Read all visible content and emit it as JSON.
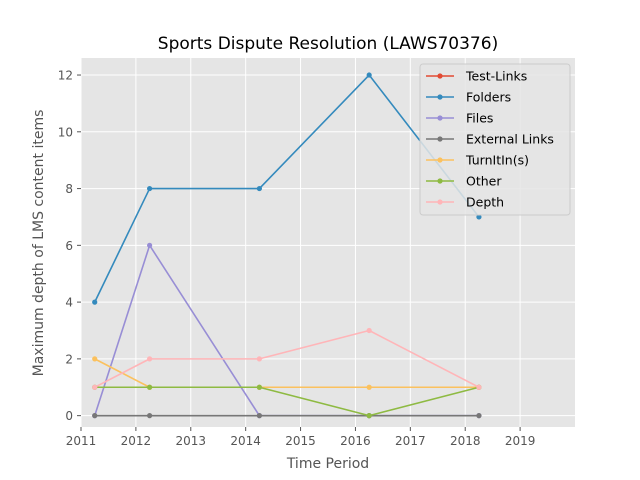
{
  "chart_data": {
    "type": "line",
    "title": "Sports Dispute Resolution (LAWS70376)",
    "xlabel": "Time Period",
    "ylabel": "Maximum depth of LMS content items",
    "xlim": [
      2011,
      2020
    ],
    "ylim": [
      -0.4,
      12.6
    ],
    "xticks": [
      2011,
      2012,
      2013,
      2014,
      2015,
      2016,
      2017,
      2018,
      2019
    ],
    "yticks": [
      0,
      2,
      4,
      6,
      8,
      10,
      12
    ],
    "grid": true,
    "legend_position": "top-right",
    "series": [
      {
        "name": "Test-Links",
        "color": "#E24A33",
        "x": [],
        "y": []
      },
      {
        "name": "Folders",
        "color": "#348ABD",
        "x": [
          2011.25,
          2012.25,
          2014.25,
          2016.25,
          2018.25
        ],
        "y": [
          4,
          8,
          8,
          12,
          7
        ]
      },
      {
        "name": "Files",
        "color": "#988ED5",
        "x": [
          2011.25,
          2012.25,
          2014.25,
          2016.25,
          2018.25
        ],
        "y": [
          0,
          6,
          0,
          0,
          0
        ]
      },
      {
        "name": "External Links",
        "color": "#777777",
        "x": [
          2011.25,
          2012.25,
          2014.25,
          2016.25,
          2018.25
        ],
        "y": [
          0,
          0,
          0,
          0,
          0
        ]
      },
      {
        "name": "TurnItIn(s)",
        "color": "#FBC15E",
        "x": [
          2011.25,
          2012.25,
          2014.25,
          2016.25,
          2018.25
        ],
        "y": [
          2,
          1,
          1,
          1,
          1
        ]
      },
      {
        "name": "Other",
        "color": "#8EBA42",
        "x": [
          2011.25,
          2012.25,
          2014.25,
          2016.25,
          2018.25
        ],
        "y": [
          1,
          1,
          1,
          0,
          1
        ]
      },
      {
        "name": "Depth",
        "color": "#FFB5B8",
        "x": [
          2011.25,
          2012.25,
          2014.25,
          2016.25,
          2018.25
        ],
        "y": [
          1,
          2,
          2,
          3,
          1
        ]
      }
    ]
  }
}
